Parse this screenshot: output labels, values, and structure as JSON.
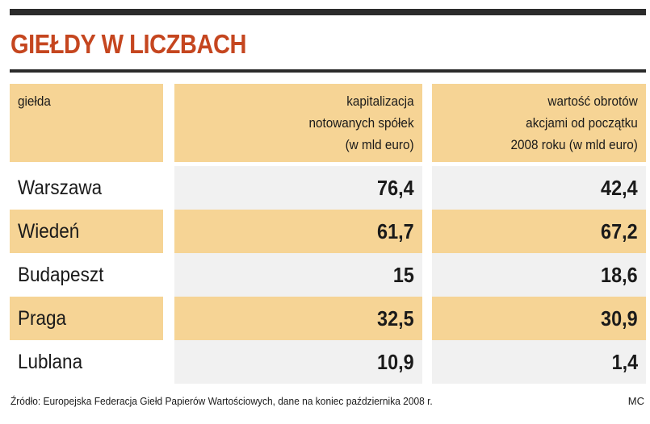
{
  "colors": {
    "accent": "#c5461f",
    "tan": "#f6d495",
    "rule": "#2b2b2b"
  },
  "title": "GIEŁDY W LICZBACH",
  "header": {
    "col1": "giełda",
    "col2": [
      "kapitalizacja",
      "notowanych spółek",
      "(w mld euro)"
    ],
    "col3": [
      "wartość obrotów",
      "akcjami od początku",
      "2008 roku (w mld euro)"
    ]
  },
  "rows": [
    {
      "name": "Warszawa",
      "cap": "76,4",
      "turnover": "42,4"
    },
    {
      "name": "Wiedeń",
      "cap": "61,7",
      "turnover": "67,2"
    },
    {
      "name": "Budapeszt",
      "cap": "15",
      "turnover": "18,6"
    },
    {
      "name": "Praga",
      "cap": "32,5",
      "turnover": "30,9"
    },
    {
      "name": "Lublana",
      "cap": "10,9",
      "turnover": "1,4"
    }
  ],
  "footer": {
    "source": "Źródło: Europejska Federacja Giełd Papierów Wartościowych, dane na koniec października 2008 r.",
    "signature": "MC"
  }
}
